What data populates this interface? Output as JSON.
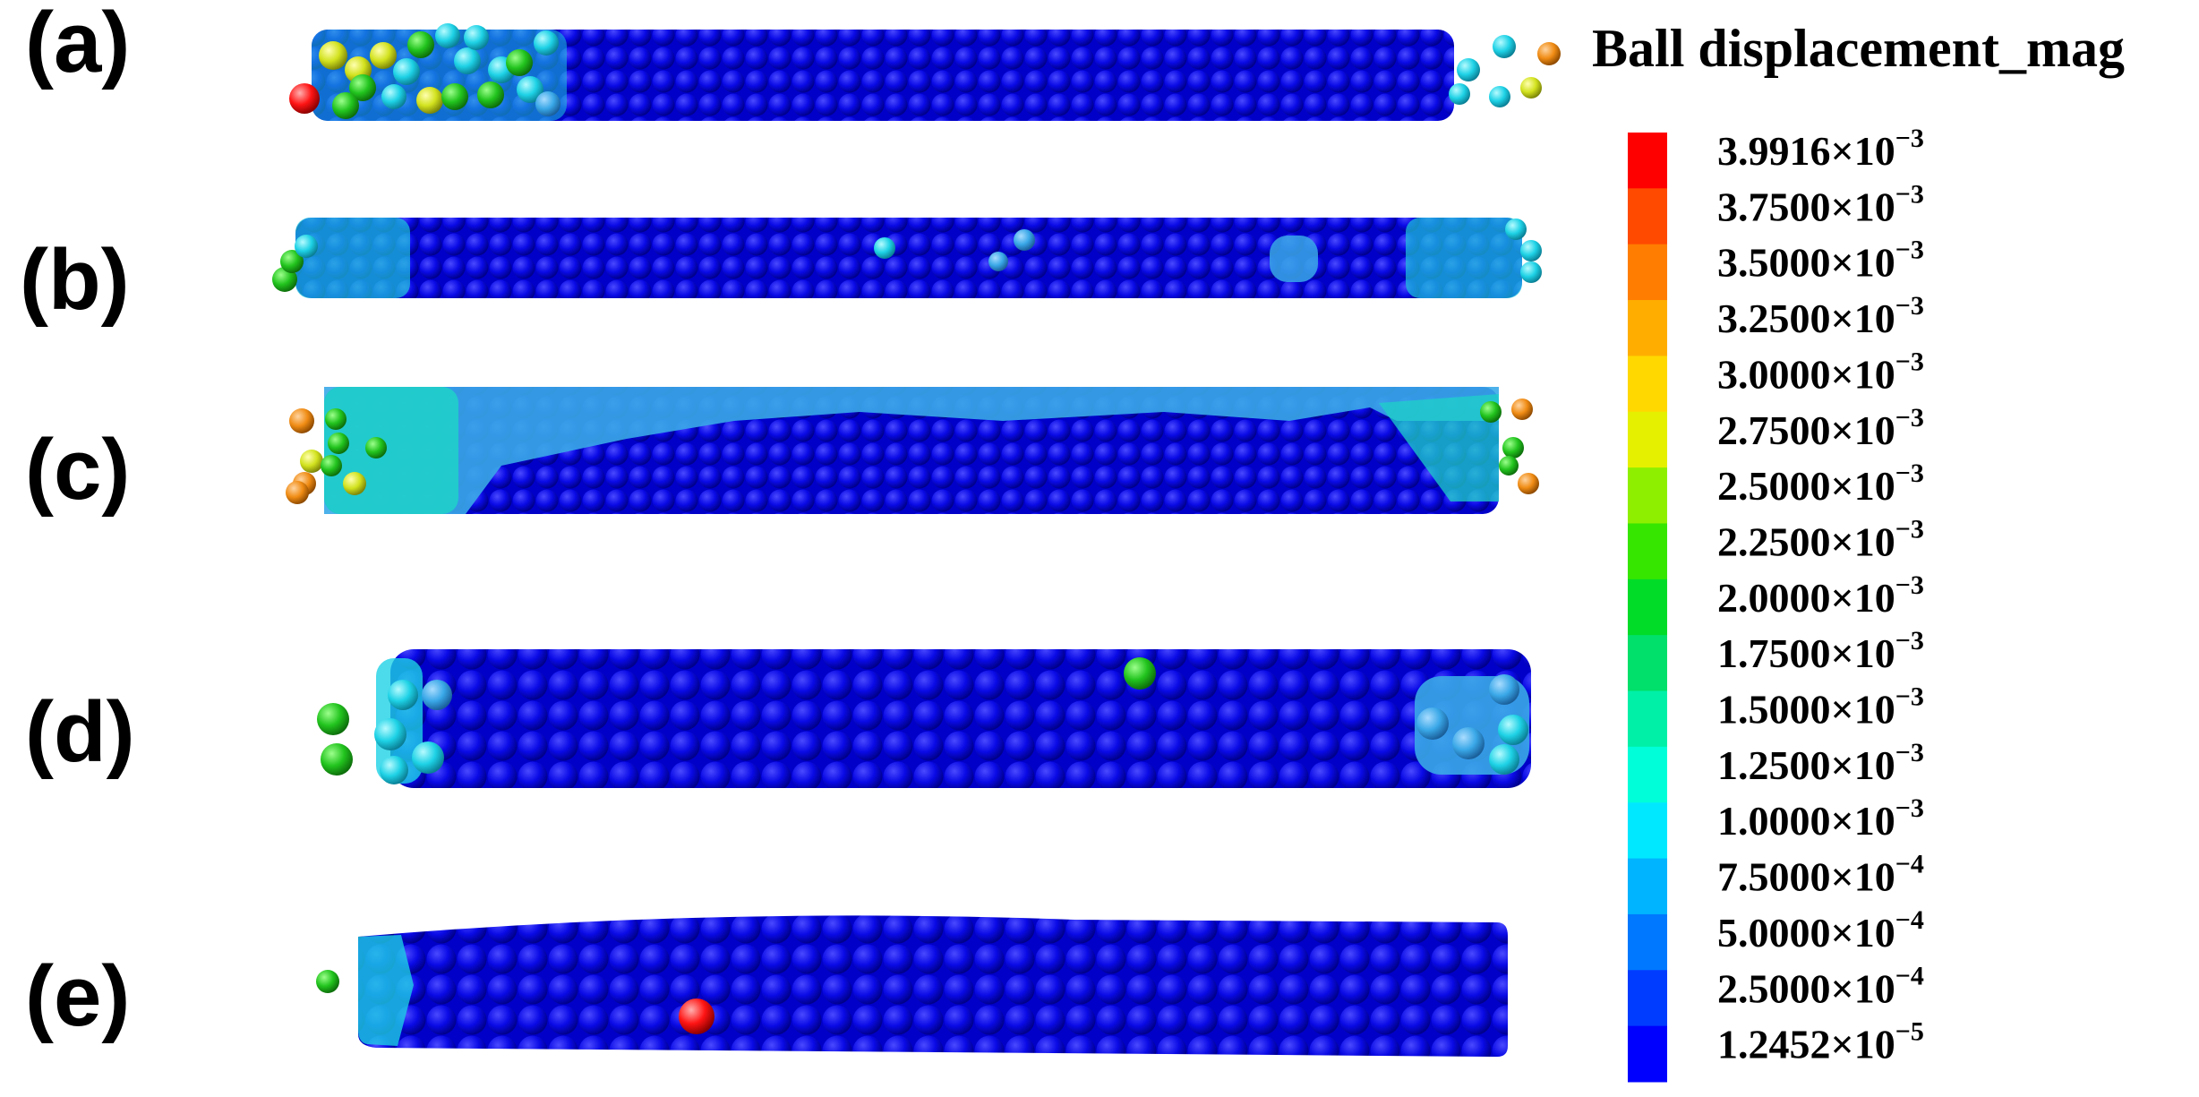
{
  "figure": {
    "panels": [
      {
        "id": "a",
        "label": "(a)"
      },
      {
        "id": "b",
        "label": "(b)"
      },
      {
        "id": "c",
        "label": "(c)"
      },
      {
        "id": "d",
        "label": "(d)"
      },
      {
        "id": "e",
        "label": "(e)"
      }
    ],
    "legend": {
      "title": "Ball displacement_mag",
      "ticks": [
        {
          "mantissa": "3.9916",
          "exp": "−3",
          "color": "#ff0000"
        },
        {
          "mantissa": "3.7500",
          "exp": "−3",
          "color": "#ff4a00"
        },
        {
          "mantissa": "3.5000",
          "exp": "−3",
          "color": "#ff7d00"
        },
        {
          "mantissa": "3.2500",
          "exp": "−3",
          "color": "#ffae00"
        },
        {
          "mantissa": "3.0000",
          "exp": "−3",
          "color": "#ffd800"
        },
        {
          "mantissa": "2.7500",
          "exp": "−3",
          "color": "#e5f000"
        },
        {
          "mantissa": "2.5000",
          "exp": "−3",
          "color": "#8ef000"
        },
        {
          "mantissa": "2.2500",
          "exp": "−3",
          "color": "#36e600"
        },
        {
          "mantissa": "2.0000",
          "exp": "−3",
          "color": "#00dc28"
        },
        {
          "mantissa": "1.7500",
          "exp": "−3",
          "color": "#00e06a"
        },
        {
          "mantissa": "1.5000",
          "exp": "−3",
          "color": "#00f0a8"
        },
        {
          "mantissa": "1.2500",
          "exp": "−3",
          "color": "#00ffd8"
        },
        {
          "mantissa": "1.0000",
          "exp": "−3",
          "color": "#00e8ff"
        },
        {
          "mantissa": "7.5000",
          "exp": "−4",
          "color": "#00b4ff"
        },
        {
          "mantissa": "5.0000",
          "exp": "−4",
          "color": "#0078ff"
        },
        {
          "mantissa": "2.5000",
          "exp": "−4",
          "color": "#003cff"
        },
        {
          "mantissa": "1.2452",
          "exp": "−5",
          "color": "#0000ff"
        }
      ]
    },
    "colors": {
      "bulk": "#0a0ae6",
      "bulk_shade": "#0000b4",
      "cyan": "#1ed2e6",
      "lightblue": "#3aa8e8",
      "green": "#22c41e",
      "yellow": "#d2e21e",
      "orange": "#f08c14",
      "red": "#ff1414"
    }
  }
}
